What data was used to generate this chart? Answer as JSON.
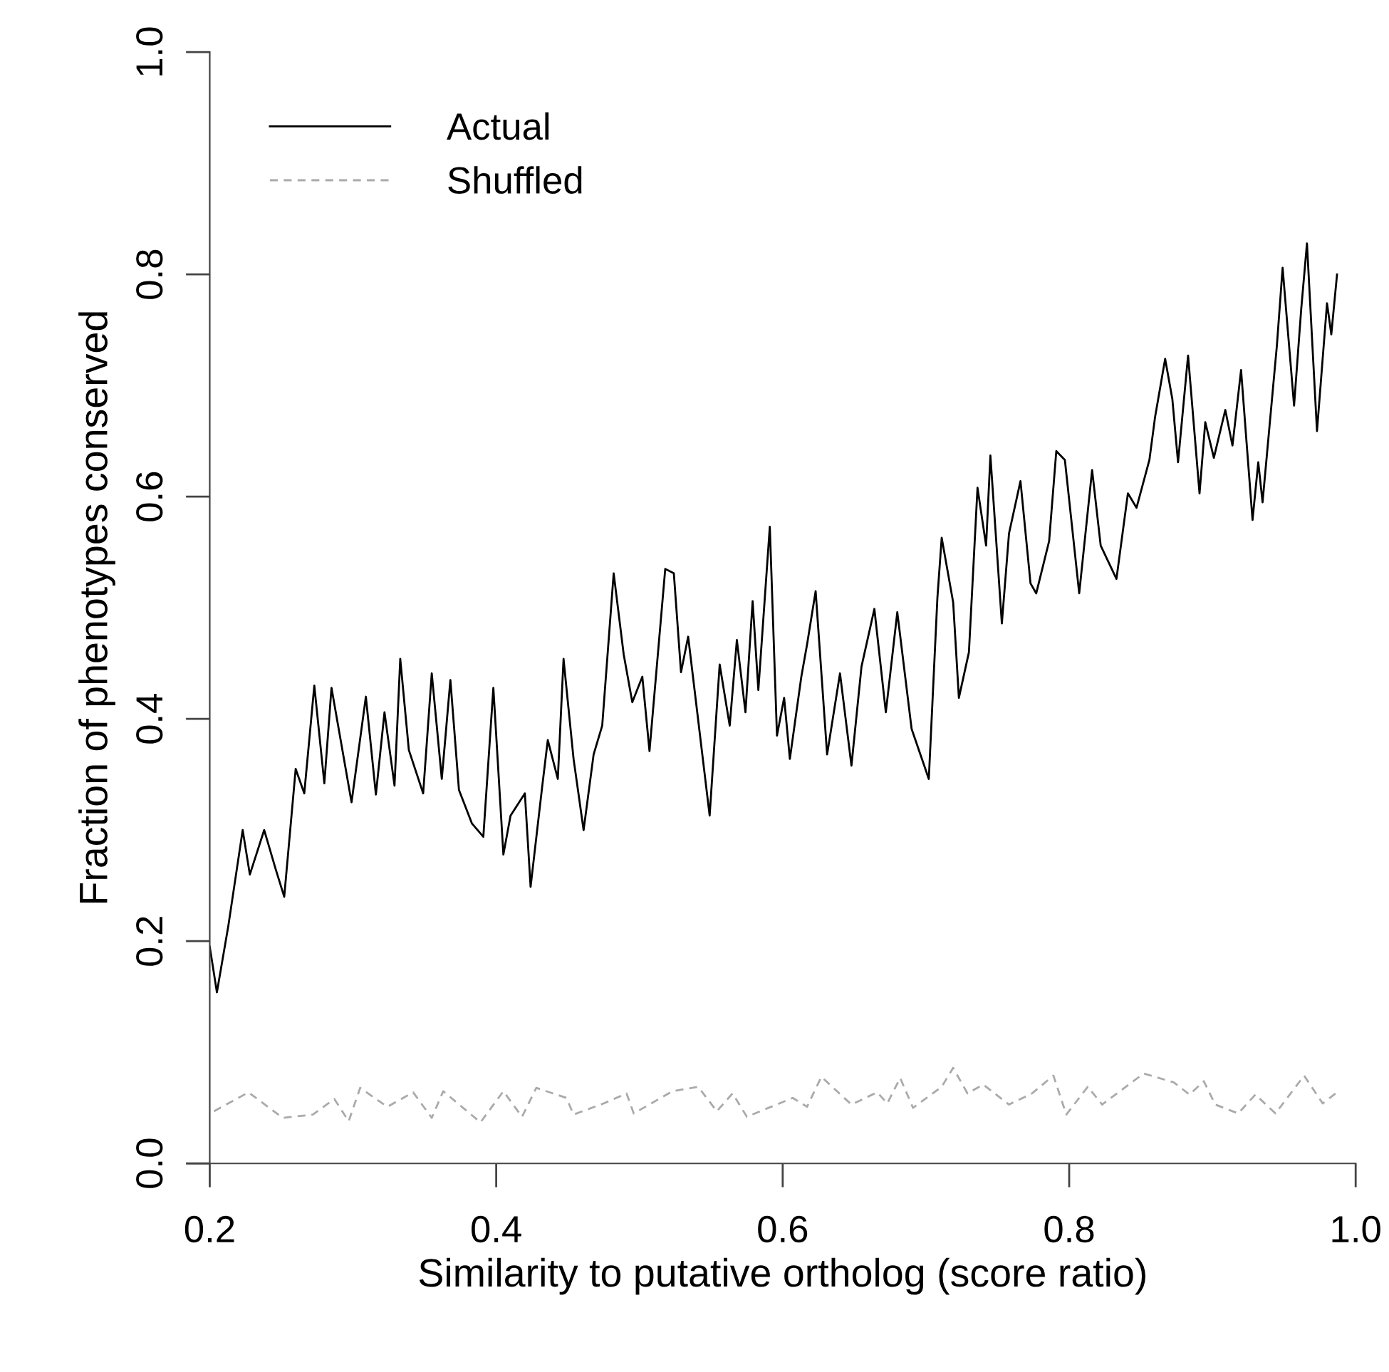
{
  "chart_data": {
    "type": "line",
    "xlabel": "Similarity to putative ortholog (score ratio)",
    "ylabel": "Fraction of phenotypes conserved",
    "xlim": [
      0.2,
      1.0
    ],
    "ylim": [
      0.0,
      1.0
    ],
    "xticks": [
      {
        "value": 0.2,
        "label": "0.2"
      },
      {
        "value": 0.4,
        "label": "0.4"
      },
      {
        "value": 0.6,
        "label": "0.6"
      },
      {
        "value": 0.8,
        "label": "0.8"
      },
      {
        "value": 1.0,
        "label": "1.0"
      }
    ],
    "yticks": [
      {
        "value": 0.0,
        "label": "0.0"
      },
      {
        "value": 0.2,
        "label": "0.2"
      },
      {
        "value": 0.4,
        "label": "0.4"
      },
      {
        "value": 0.6,
        "label": "0.6"
      },
      {
        "value": 0.8,
        "label": "0.8"
      },
      {
        "value": 1.0,
        "label": "1.0"
      }
    ],
    "legend": "top left",
    "series": [
      {
        "name": "Actual",
        "color": "#000000",
        "line_style": "solid",
        "x": [
          0.2,
          0.205,
          0.213,
          0.223,
          0.228,
          0.238,
          0.246,
          0.252,
          0.26,
          0.266,
          0.273,
          0.28,
          0.285,
          0.299,
          0.309,
          0.316,
          0.322,
          0.329,
          0.333,
          0.339,
          0.349,
          0.355,
          0.362,
          0.368,
          0.374,
          0.383,
          0.391,
          0.398,
          0.405,
          0.41,
          0.42,
          0.424,
          0.432,
          0.436,
          0.443,
          0.447,
          0.454,
          0.461,
          0.468,
          0.474,
          0.482,
          0.489,
          0.495,
          0.502,
          0.507,
          0.518,
          0.524,
          0.529,
          0.534,
          0.549,
          0.556,
          0.563,
          0.568,
          0.574,
          0.579,
          0.583,
          0.591,
          0.596,
          0.601,
          0.605,
          0.613,
          0.617,
          0.623,
          0.631,
          0.64,
          0.648,
          0.655,
          0.664,
          0.672,
          0.68,
          0.69,
          0.702,
          0.708,
          0.711,
          0.719,
          0.723,
          0.73,
          0.736,
          0.742,
          0.745,
          0.753,
          0.758,
          0.766,
          0.773,
          0.777,
          0.786,
          0.791,
          0.797,
          0.807,
          0.816,
          0.822,
          0.833,
          0.841,
          0.847,
          0.856,
          0.86,
          0.867,
          0.872,
          0.876,
          0.883,
          0.891,
          0.895,
          0.901,
          0.909,
          0.914,
          0.92,
          0.924,
          0.928,
          0.932,
          0.935,
          0.945,
          0.949,
          0.953,
          0.957,
          0.962,
          0.966,
          0.973,
          0.98,
          0.983,
          0.987
        ],
        "values": [
          0.195,
          0.154,
          0.214,
          0.3,
          0.26,
          0.3,
          0.265,
          0.24,
          0.355,
          0.333,
          0.43,
          0.342,
          0.428,
          0.325,
          0.42,
          0.332,
          0.406,
          0.34,
          0.454,
          0.372,
          0.333,
          0.441,
          0.346,
          0.435,
          0.336,
          0.306,
          0.294,
          0.428,
          0.278,
          0.313,
          0.333,
          0.249,
          0.338,
          0.381,
          0.346,
          0.454,
          0.364,
          0.3,
          0.368,
          0.394,
          0.531,
          0.458,
          0.415,
          0.438,
          0.371,
          0.535,
          0.531,
          0.442,
          0.474,
          0.313,
          0.449,
          0.394,
          0.471,
          0.406,
          0.506,
          0.426,
          0.573,
          0.385,
          0.419,
          0.364,
          0.438,
          0.467,
          0.515,
          0.368,
          0.441,
          0.358,
          0.447,
          0.499,
          0.406,
          0.496,
          0.391,
          0.346,
          0.509,
          0.563,
          0.505,
          0.419,
          0.46,
          0.608,
          0.556,
          0.637,
          0.486,
          0.567,
          0.614,
          0.522,
          0.513,
          0.56,
          0.641,
          0.633,
          0.513,
          0.624,
          0.556,
          0.526,
          0.603,
          0.59,
          0.633,
          0.672,
          0.724,
          0.688,
          0.631,
          0.727,
          0.603,
          0.667,
          0.635,
          0.678,
          0.646,
          0.714,
          0.646,
          0.579,
          0.631,
          0.595,
          0.736,
          0.806,
          0.744,
          0.682,
          0.769,
          0.828,
          0.659,
          0.774,
          0.746,
          0.8
        ]
      },
      {
        "name": "Shuffled",
        "color": "#aaaaaa",
        "line_style": "dashed",
        "x": [
          0.203,
          0.227,
          0.251,
          0.272,
          0.287,
          0.297,
          0.305,
          0.324,
          0.342,
          0.355,
          0.363,
          0.389,
          0.405,
          0.418,
          0.428,
          0.449,
          0.454,
          0.475,
          0.491,
          0.496,
          0.523,
          0.541,
          0.554,
          0.565,
          0.575,
          0.607,
          0.617,
          0.627,
          0.648,
          0.666,
          0.673,
          0.682,
          0.691,
          0.711,
          0.719,
          0.729,
          0.74,
          0.758,
          0.774,
          0.789,
          0.798,
          0.813,
          0.823,
          0.852,
          0.873,
          0.884,
          0.894,
          0.902,
          0.918,
          0.93,
          0.944,
          0.964,
          0.977,
          0.987
        ],
        "values": [
          0.047,
          0.064,
          0.041,
          0.044,
          0.058,
          0.038,
          0.068,
          0.051,
          0.064,
          0.041,
          0.065,
          0.037,
          0.065,
          0.042,
          0.068,
          0.059,
          0.044,
          0.054,
          0.063,
          0.045,
          0.065,
          0.069,
          0.047,
          0.063,
          0.042,
          0.059,
          0.051,
          0.078,
          0.053,
          0.064,
          0.054,
          0.077,
          0.05,
          0.069,
          0.086,
          0.063,
          0.071,
          0.053,
          0.063,
          0.079,
          0.044,
          0.069,
          0.053,
          0.081,
          0.073,
          0.062,
          0.074,
          0.053,
          0.045,
          0.062,
          0.045,
          0.079,
          0.054,
          0.064
        ]
      }
    ]
  }
}
